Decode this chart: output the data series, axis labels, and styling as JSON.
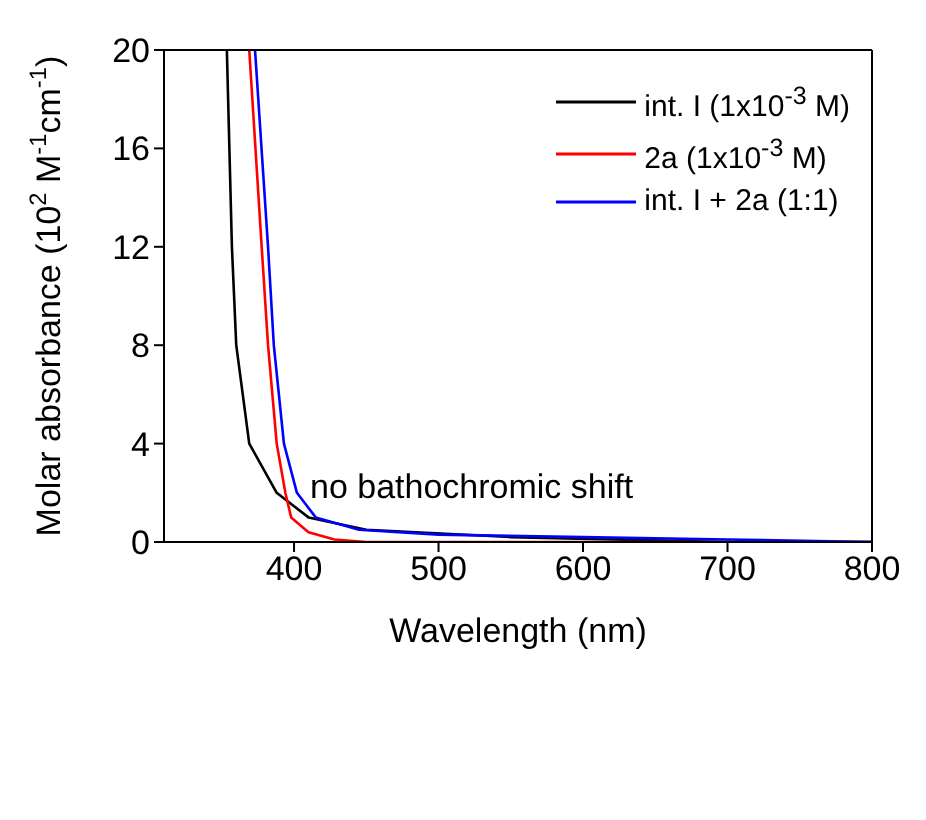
{
  "chart_data": {
    "type": "line",
    "xlabel": "Wavelength (nm)",
    "ylabel": "Molar absorbance (10$^{2}$ M$^{-1}$cm$^{-1}$)",
    "xlim": [
      310,
      800
    ],
    "xticks": [
      400,
      500,
      600,
      700,
      800
    ],
    "ylim": [
      0,
      20
    ],
    "yticks": [
      0,
      4,
      8,
      12,
      16,
      20
    ],
    "legend": "top right",
    "grid": false,
    "marker": "none",
    "line_style": "solid",
    "annotations": [
      "no bathochromic shift"
    ],
    "series": [
      {
        "name": "int. I (1x10$^{-3}$ M)",
        "color": "#000000",
        "x": [
          353.5,
          357,
          360,
          369,
          388,
          410,
          450,
          550,
          700,
          800
        ],
        "values": [
          20,
          12,
          8,
          4,
          2,
          1,
          0.5,
          0.2,
          0,
          0
        ]
      },
      {
        "name": "2a (1x10$^{-3}$ M)",
        "color": "#ff0000",
        "x": [
          369,
          377.6,
          382,
          388,
          394,
          398,
          410,
          428,
          450,
          800
        ],
        "values": [
          20,
          12,
          8,
          4,
          2,
          1,
          0.4,
          0.1,
          0,
          0
        ]
      },
      {
        "name": "int. I + 2a (1:1)",
        "color": "#0000ff",
        "x": [
          373,
          382,
          386,
          393,
          402,
          415,
          445,
          500,
          600,
          700,
          800
        ],
        "values": [
          20,
          12,
          8,
          4,
          2,
          1,
          0.5,
          0.3,
          0.2,
          0.1,
          0
        ]
      }
    ]
  }
}
